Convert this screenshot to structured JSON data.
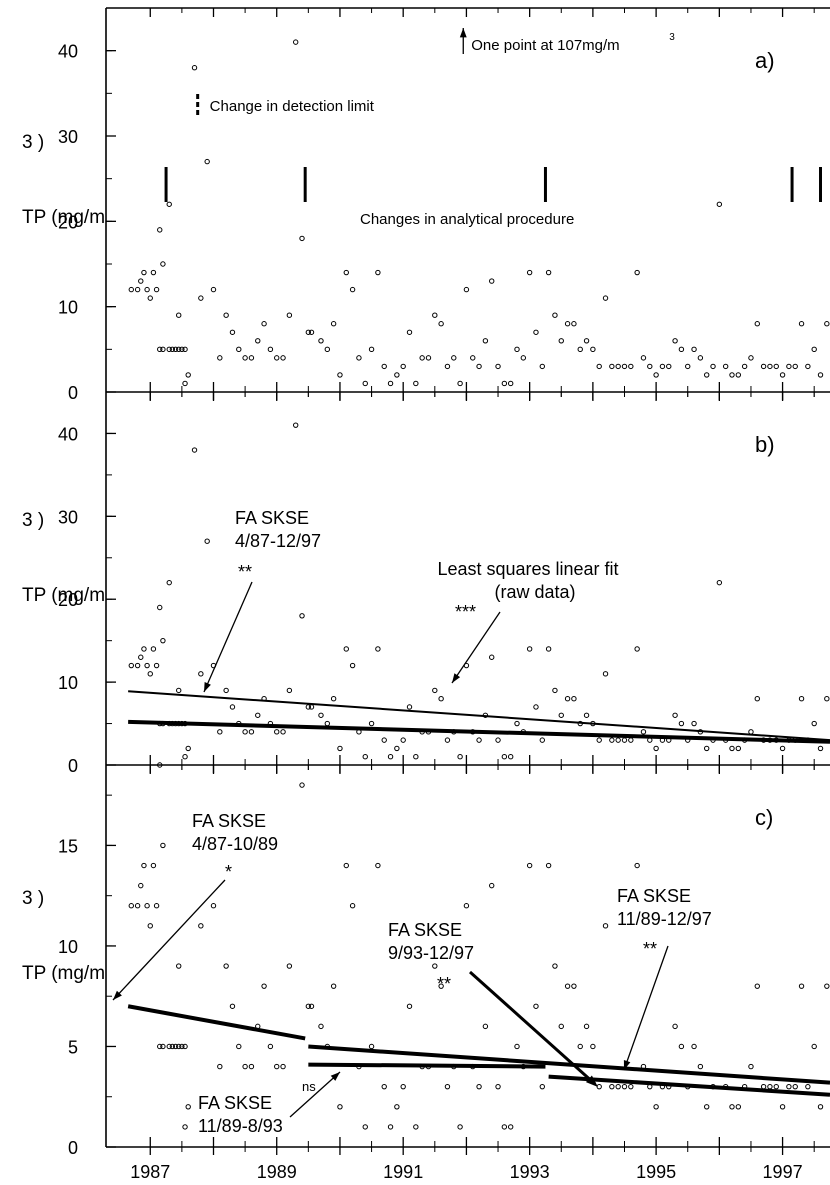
{
  "chart_data": [
    {
      "type": "scatter",
      "panel_label": "a)",
      "ylabel": "TP (mg/m",
      "ylabel_sup": "3",
      "ylabel_tail": ")",
      "ylim": [
        0,
        45
      ],
      "yticks": [
        0,
        10,
        20,
        30,
        40
      ],
      "xlim": [
        1986.3,
        1997.75
      ],
      "xticks": [
        1987,
        1989,
        1991,
        1993,
        1995,
        1997
      ],
      "annotations": {
        "outlier_note": "One point at 107mg/m",
        "outlier_note_sup": "3",
        "detection_limit": "Change in detection limit",
        "procedure_changes": "Changes in analytical procedure"
      },
      "procedure_change_dates": [
        1987.25,
        1989.45,
        1993.25,
        1997.15,
        1997.6
      ],
      "detection_limit_date": 1987.75,
      "outlier_date": 1991.95,
      "points": [
        [
          1986.7,
          12
        ],
        [
          1986.8,
          12
        ],
        [
          1986.85,
          13
        ],
        [
          1986.9,
          14
        ],
        [
          1986.95,
          12
        ],
        [
          1987.0,
          11
        ],
        [
          1987.05,
          14
        ],
        [
          1987.1,
          12
        ],
        [
          1987.15,
          5
        ],
        [
          1987.2,
          5
        ],
        [
          1987.3,
          5
        ],
        [
          1987.35,
          5
        ],
        [
          1987.4,
          5
        ],
        [
          1987.45,
          5
        ],
        [
          1987.5,
          5
        ],
        [
          1987.55,
          5
        ],
        [
          1987.6,
          2
        ],
        [
          1987.15,
          19
        ],
        [
          1987.2,
          15
        ],
        [
          1987.3,
          22
        ],
        [
          1987.45,
          9
        ],
        [
          1987.55,
          1
        ],
        [
          1987.7,
          38
        ],
        [
          1987.8,
          11
        ],
        [
          1987.9,
          27
        ],
        [
          1988.0,
          12
        ],
        [
          1988.1,
          4
        ],
        [
          1988.2,
          9
        ],
        [
          1988.3,
          7
        ],
        [
          1988.4,
          5
        ],
        [
          1988.5,
          4
        ],
        [
          1988.6,
          4
        ],
        [
          1988.7,
          6
        ],
        [
          1988.8,
          8
        ],
        [
          1988.9,
          5
        ],
        [
          1989.0,
          4
        ],
        [
          1989.1,
          4
        ],
        [
          1989.2,
          9
        ],
        [
          1989.3,
          41
        ],
        [
          1989.4,
          18
        ],
        [
          1989.5,
          7
        ],
        [
          1989.55,
          7
        ],
        [
          1989.7,
          6
        ],
        [
          1989.8,
          5
        ],
        [
          1989.9,
          8
        ],
        [
          1990.0,
          2
        ],
        [
          1990.1,
          14
        ],
        [
          1990.2,
          12
        ],
        [
          1990.3,
          4
        ],
        [
          1990.4,
          1
        ],
        [
          1990.5,
          5
        ],
        [
          1990.6,
          14
        ],
        [
          1990.7,
          3
        ],
        [
          1990.8,
          1
        ],
        [
          1990.9,
          2
        ],
        [
          1991.0,
          3
        ],
        [
          1991.1,
          7
        ],
        [
          1991.2,
          1
        ],
        [
          1991.3,
          4
        ],
        [
          1991.4,
          4
        ],
        [
          1991.5,
          9
        ],
        [
          1991.6,
          8
        ],
        [
          1991.7,
          3
        ],
        [
          1991.8,
          4
        ],
        [
          1991.9,
          1
        ],
        [
          1992.0,
          12
        ],
        [
          1992.1,
          4
        ],
        [
          1992.2,
          3
        ],
        [
          1992.3,
          6
        ],
        [
          1992.4,
          13
        ],
        [
          1992.5,
          3
        ],
        [
          1992.6,
          1
        ],
        [
          1992.7,
          1
        ],
        [
          1992.8,
          5
        ],
        [
          1992.9,
          4
        ],
        [
          1993.0,
          14
        ],
        [
          1993.1,
          7
        ],
        [
          1993.2,
          3
        ],
        [
          1993.3,
          14
        ],
        [
          1993.4,
          9
        ],
        [
          1993.5,
          6
        ],
        [
          1993.6,
          8
        ],
        [
          1993.7,
          8
        ],
        [
          1993.8,
          5
        ],
        [
          1993.9,
          6
        ],
        [
          1994.0,
          5
        ],
        [
          1994.1,
          3
        ],
        [
          1994.2,
          11
        ],
        [
          1994.3,
          3
        ],
        [
          1994.4,
          3
        ],
        [
          1994.5,
          3
        ],
        [
          1994.6,
          3
        ],
        [
          1994.7,
          14
        ],
        [
          1994.8,
          4
        ],
        [
          1994.9,
          3
        ],
        [
          1995.0,
          2
        ],
        [
          1995.1,
          3
        ],
        [
          1995.2,
          3
        ],
        [
          1995.3,
          6
        ],
        [
          1995.4,
          5
        ],
        [
          1995.5,
          3
        ],
        [
          1995.6,
          5
        ],
        [
          1995.7,
          4
        ],
        [
          1995.8,
          2
        ],
        [
          1995.9,
          3
        ],
        [
          1996.0,
          22
        ],
        [
          1996.1,
          3
        ],
        [
          1996.2,
          2
        ],
        [
          1996.3,
          2
        ],
        [
          1996.4,
          3
        ],
        [
          1996.5,
          4
        ],
        [
          1996.6,
          8
        ],
        [
          1996.7,
          3
        ],
        [
          1996.8,
          3
        ],
        [
          1996.9,
          3
        ],
        [
          1997.0,
          2
        ],
        [
          1997.1,
          3
        ],
        [
          1997.2,
          3
        ],
        [
          1997.3,
          8
        ],
        [
          1997.4,
          3
        ],
        [
          1997.5,
          5
        ],
        [
          1997.6,
          2
        ],
        [
          1997.7,
          8
        ]
      ]
    },
    {
      "type": "scatter",
      "panel_label": "b)",
      "ylabel": "TP (mg/m",
      "ylabel_sup": "3",
      "ylabel_tail": ")",
      "ylim": [
        0,
        45
      ],
      "yticks": [
        0,
        10,
        20,
        30,
        40
      ],
      "xlim": [
        1986.3,
        1997.75
      ],
      "xticks": [
        1987,
        1989,
        1991,
        1993,
        1995,
        1997
      ],
      "annotations": {
        "fa_label": "FA SKSE",
        "fa_period": "4/87-12/97",
        "fa_sig": "**",
        "ls_label": "Least squares linear fit",
        "ls_sub": "(raw data)",
        "ls_sig": "***"
      },
      "series": [
        {
          "name": "FA SKSE 4/87-12/97",
          "x": [
            1986.65,
            1997.75
          ],
          "y": [
            5.2,
            2.8
          ]
        },
        {
          "name": "Least squares linear fit (raw data)",
          "x": [
            1986.65,
            1997.75
          ],
          "y": [
            8.9,
            3.0
          ]
        }
      ]
    },
    {
      "type": "scatter",
      "panel_label": "c)",
      "ylabel": "TP (mg/m",
      "ylabel_sup": "3",
      "ylabel_tail": ")",
      "ylim": [
        0,
        19
      ],
      "yticks": [
        0,
        5,
        10,
        15
      ],
      "xlim": [
        1986.3,
        1997.75
      ],
      "xticks": [
        1987,
        1989,
        1991,
        1993,
        1995,
        1997
      ],
      "xtick_labels": [
        "1987",
        "1989",
        "1991",
        "1993",
        "1995",
        "1997"
      ],
      "annotations": {
        "fa1_label": "FA SKSE",
        "fa1_period": "4/87-10/89",
        "fa1_sig": "*",
        "fa2_label": "FA SKSE",
        "fa2_period": "9/93-12/97",
        "fa2_sig": "**",
        "fa3_label": "FA SKSE",
        "fa3_period": "11/89-12/97",
        "fa3_sig": "**",
        "fa4_label": "FA SKSE",
        "fa4_period": "11/89-8/93",
        "fa4_sig": "ns"
      },
      "series": [
        {
          "name": "FA SKSE 4/87-10/89",
          "x": [
            1986.65,
            1989.45
          ],
          "y": [
            7.0,
            5.4
          ]
        },
        {
          "name": "FA SKSE 11/89-12/97",
          "x": [
            1989.5,
            1997.75
          ],
          "y": [
            5.0,
            3.2
          ]
        },
        {
          "name": "FA SKSE 11/89-8/93",
          "x": [
            1989.5,
            1993.25
          ],
          "y": [
            4.1,
            4.0
          ]
        },
        {
          "name": "FA SKSE 9/93-12/97",
          "x": [
            1993.3,
            1997.75
          ],
          "y": [
            3.5,
            2.6
          ]
        }
      ]
    }
  ]
}
